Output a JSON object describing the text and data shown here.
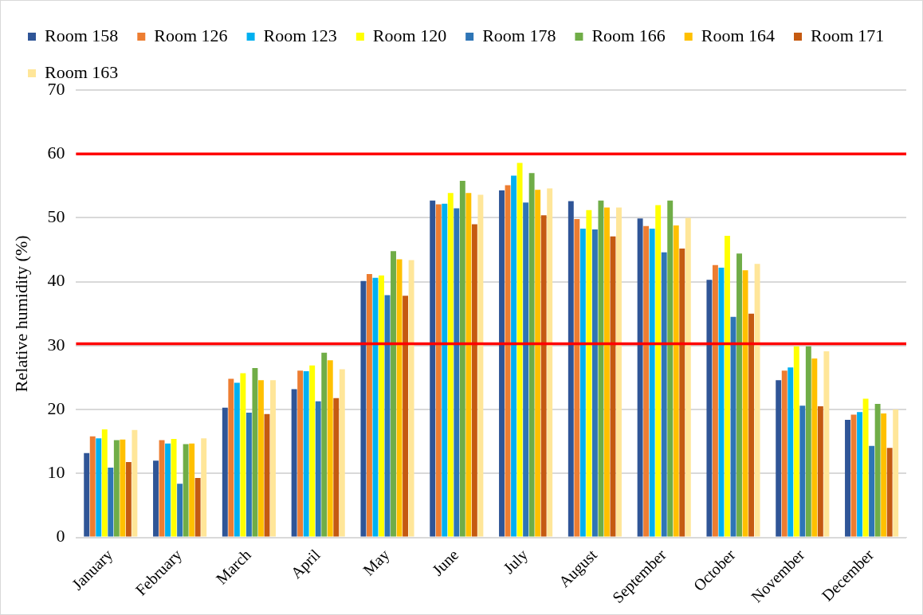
{
  "chart_data": {
    "type": "bar",
    "ylabel": "Relative humidity (%)",
    "categories": [
      "January",
      "February",
      "March",
      "April",
      "May",
      "June",
      "July",
      "August",
      "September",
      "October",
      "November",
      "December"
    ],
    "series": [
      {
        "name": "Room 158",
        "color": "#2f5597",
        "values": [
          13.2,
          12.0,
          20.3,
          23.2,
          40.1,
          52.7,
          54.3,
          52.6,
          49.9,
          40.3,
          24.6,
          18.4
        ]
      },
      {
        "name": "Room 126",
        "color": "#ed7d31",
        "values": [
          15.8,
          15.2,
          24.8,
          26.1,
          41.2,
          52.1,
          55.1,
          49.8,
          48.7,
          42.6,
          26.1,
          19.2
        ]
      },
      {
        "name": "Room 123",
        "color": "#00b0f0",
        "values": [
          15.5,
          14.7,
          24.2,
          26.0,
          40.6,
          52.2,
          56.6,
          48.3,
          48.3,
          42.2,
          26.6,
          19.6
        ]
      },
      {
        "name": "Room 120",
        "color": "#ffff00",
        "values": [
          16.9,
          15.4,
          25.7,
          26.9,
          41.0,
          53.9,
          58.6,
          51.2,
          52.0,
          47.2,
          29.9,
          21.7
        ]
      },
      {
        "name": "Room 178",
        "color": "#2e75b6",
        "values": [
          10.9,
          8.4,
          19.5,
          21.3,
          37.9,
          51.5,
          52.4,
          48.2,
          44.6,
          34.5,
          20.6,
          14.3
        ]
      },
      {
        "name": "Room 166",
        "color": "#70ad47",
        "values": [
          15.2,
          14.6,
          26.5,
          28.9,
          44.8,
          55.8,
          57.0,
          52.7,
          52.7,
          44.4,
          29.9,
          20.9
        ]
      },
      {
        "name": "Room 164",
        "color": "#ffc000",
        "values": [
          15.3,
          14.7,
          24.6,
          27.7,
          43.5,
          53.9,
          54.4,
          51.6,
          48.8,
          41.8,
          28.0,
          19.4
        ]
      },
      {
        "name": "Room 171",
        "color": "#c55a11",
        "values": [
          11.8,
          9.3,
          19.3,
          21.8,
          37.8,
          49.0,
          50.4,
          47.1,
          45.2,
          35.0,
          20.5,
          14.0
        ]
      },
      {
        "name": "Room 163",
        "color": "#ffe699",
        "values": [
          16.8,
          15.5,
          24.6,
          26.3,
          43.4,
          53.6,
          54.6,
          51.6,
          50.0,
          42.8,
          29.1,
          20.0
        ]
      }
    ],
    "ylim": [
      0,
      70
    ],
    "yticks": [
      0,
      10,
      20,
      30,
      40,
      50,
      60,
      70
    ],
    "grid": "y",
    "legend": "top",
    "ref_lines": [
      {
        "axis": "y",
        "value": 60,
        "color": "#ff0000"
      },
      {
        "axis": "y",
        "value": 30.3,
        "color": "#ff0000"
      }
    ]
  }
}
